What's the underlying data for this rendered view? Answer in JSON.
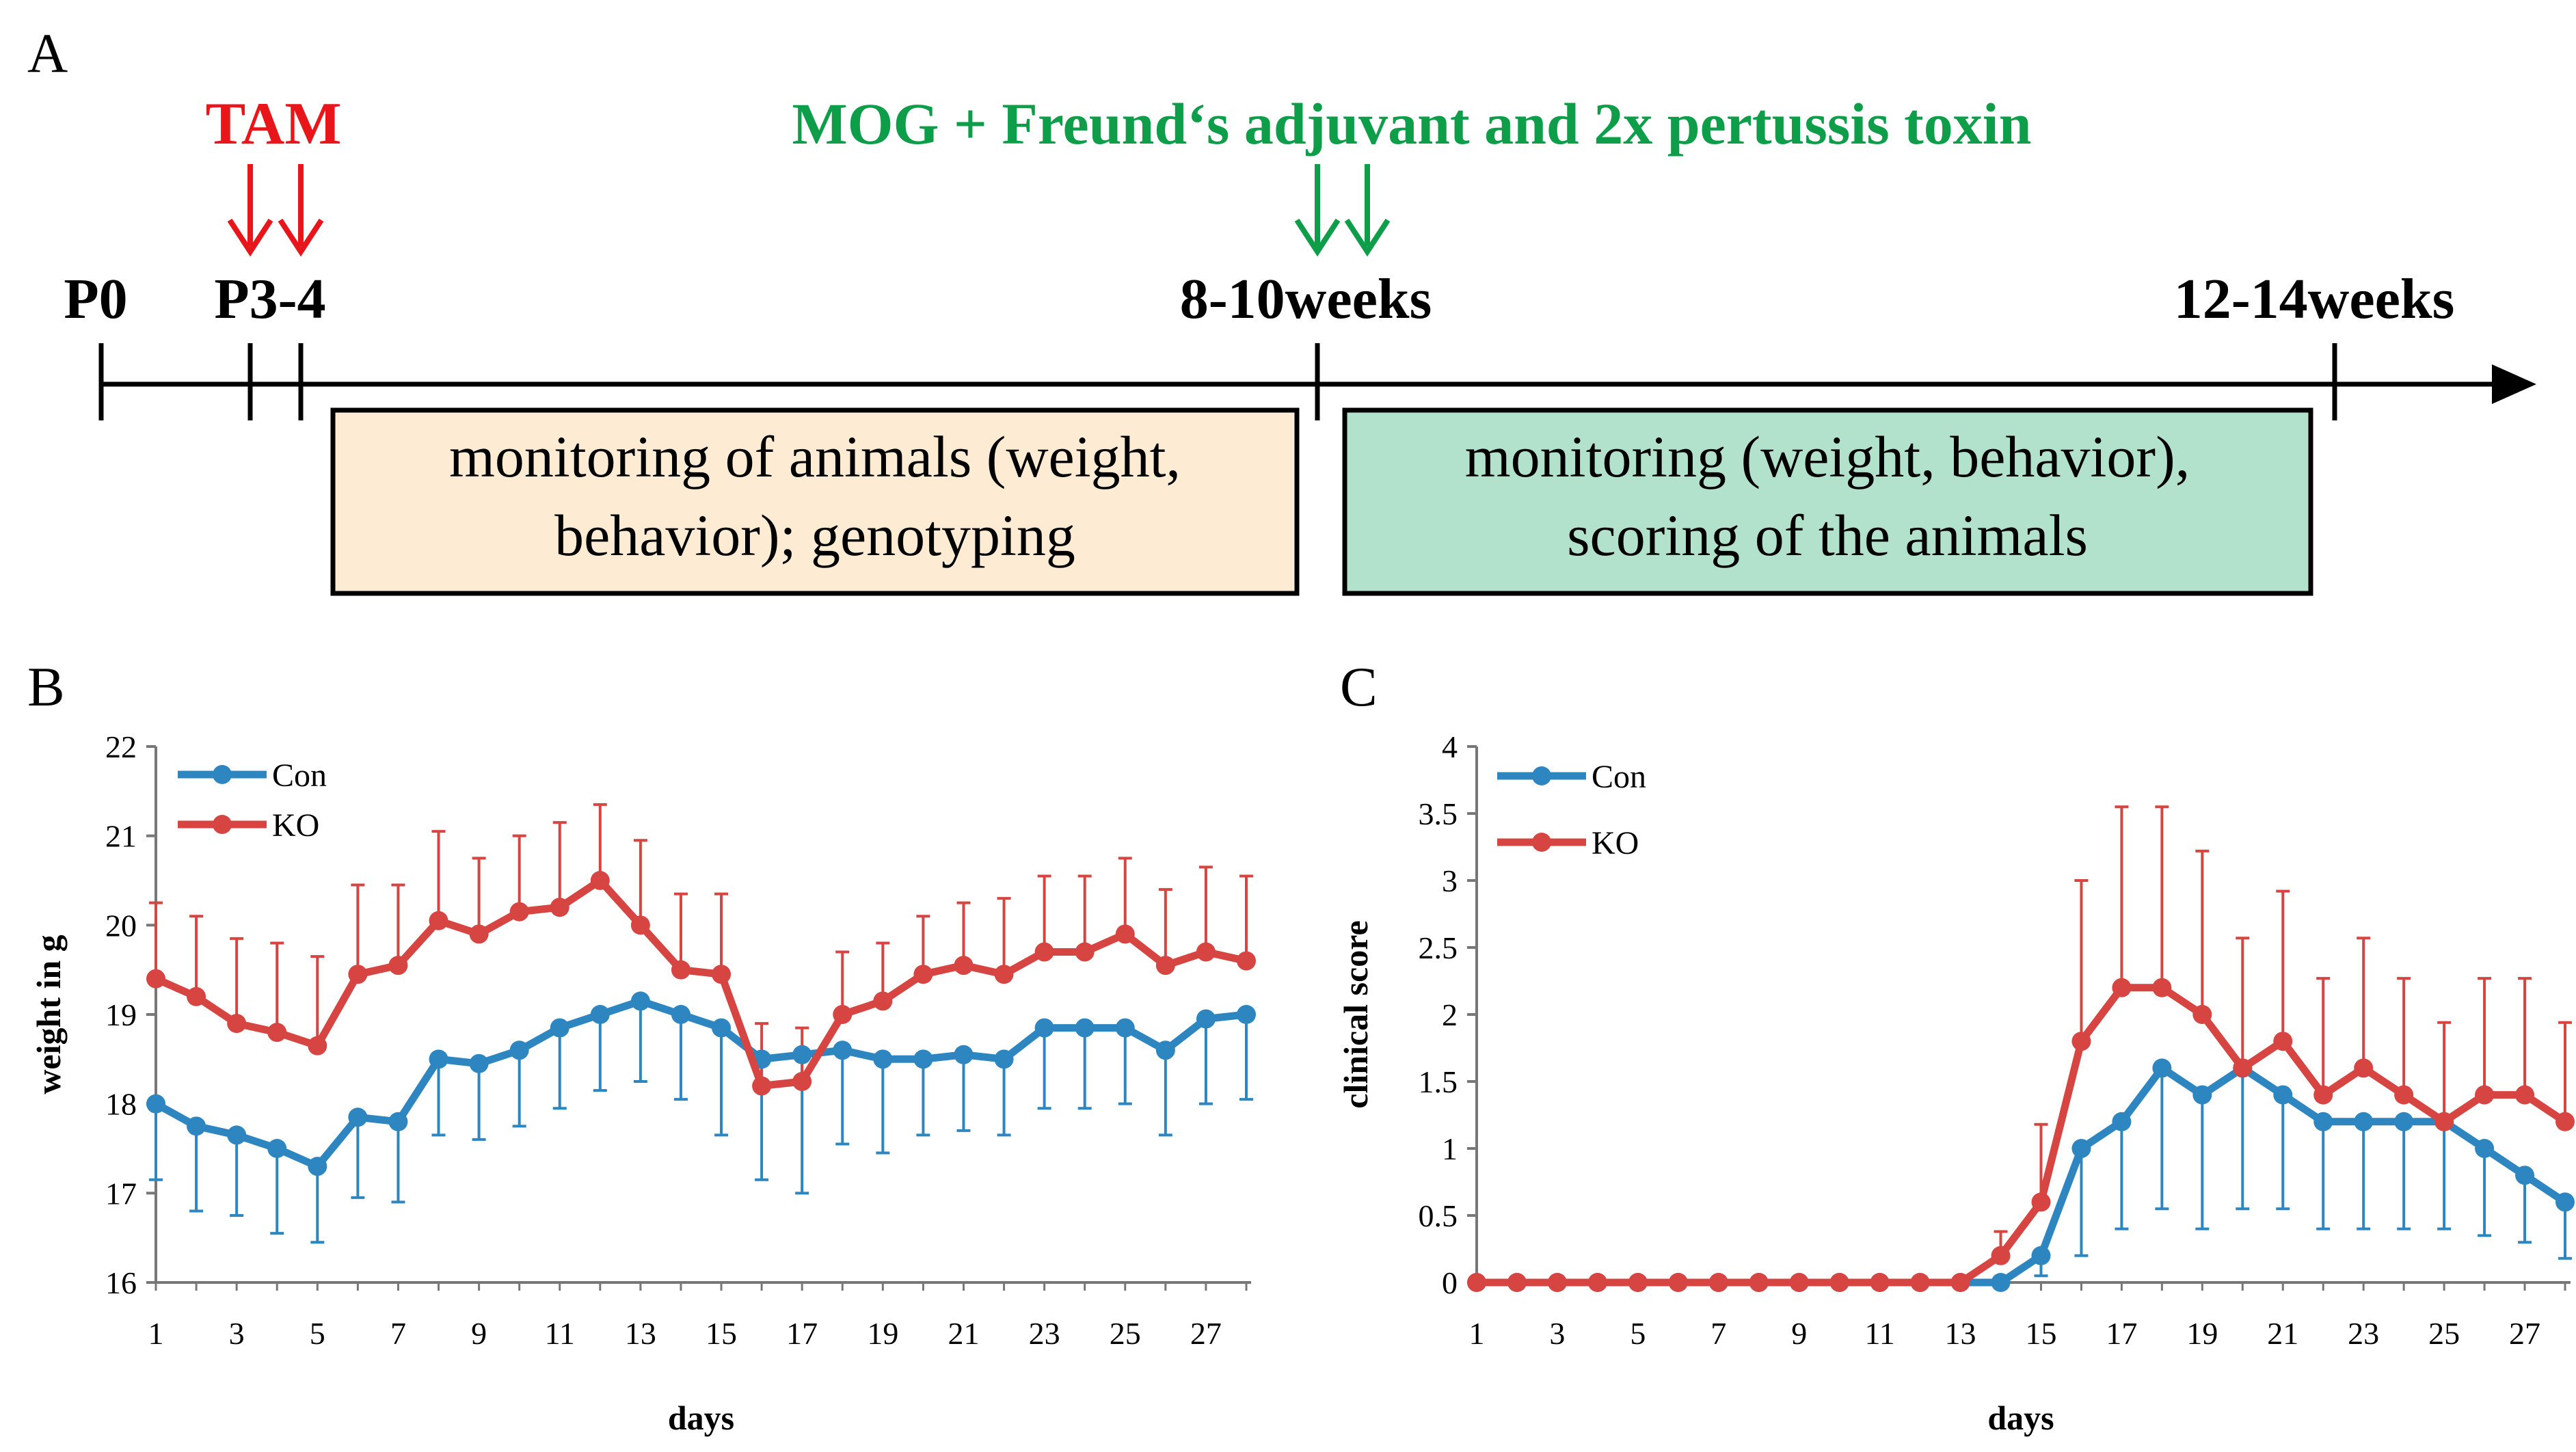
{
  "panel_labels": {
    "a": "A",
    "b": "B",
    "c": "C"
  },
  "timeline": {
    "tam_label": "TAM",
    "mog_label": "MOG + Freund‘s adjuvant and 2x pertussis toxin",
    "ticks": {
      "p0": "P0",
      "p34": "P3-4",
      "w810": "8-10weeks",
      "w1214": "12-14weeks"
    },
    "box1": {
      "line1": "monitoring of animals (weight,",
      "line2": "behavior); genotyping"
    },
    "box2": {
      "line1": "monitoring (weight, behavior),",
      "line2": "scoring of the animals"
    }
  },
  "colors": {
    "con": "#2E86C1",
    "ko": "#D64541",
    "tam": "#E8161B",
    "mog": "#0E9E4A",
    "box1_fill": "#FDEBD4",
    "box2_fill": "#B2E1CC"
  },
  "chart_data": [
    {
      "type": "line",
      "title": "",
      "xlabel": "days",
      "ylabel": "weight in g",
      "ylim": [
        16,
        22
      ],
      "yticks": [
        "16",
        "17",
        "18",
        "19",
        "20",
        "21",
        "22"
      ],
      "xticks": [
        "1",
        "3",
        "5",
        "7",
        "9",
        "11",
        "13",
        "15",
        "17",
        "19",
        "21",
        "23",
        "25",
        "27"
      ],
      "x": [
        1,
        2,
        3,
        4,
        5,
        6,
        7,
        8,
        9,
        10,
        11,
        12,
        13,
        14,
        15,
        16,
        17,
        18,
        19,
        20,
        21,
        22,
        23,
        24,
        25,
        26,
        27,
        28
      ],
      "legend": "top-left",
      "series": [
        {
          "name": "Con",
          "values": [
            18.0,
            17.75,
            17.65,
            17.5,
            17.3,
            17.85,
            17.8,
            18.5,
            18.45,
            18.6,
            18.85,
            19.0,
            19.15,
            19.0,
            18.85,
            18.5,
            18.55,
            18.6,
            18.5,
            18.5,
            18.55,
            18.5,
            18.85,
            18.85,
            18.85,
            18.6,
            18.95,
            19.0
          ],
          "error": [
            0.85,
            0.95,
            0.9,
            0.95,
            0.85,
            0.9,
            0.9,
            0.85,
            0.85,
            0.85,
            0.9,
            0.85,
            0.9,
            0.95,
            1.2,
            1.35,
            1.55,
            1.05,
            1.05,
            0.85,
            0.85,
            0.85,
            0.9,
            0.9,
            0.85,
            0.95,
            0.95,
            0.95
          ],
          "error_dir": "down"
        },
        {
          "name": "KO",
          "values": [
            19.4,
            19.2,
            18.9,
            18.8,
            18.65,
            19.45,
            19.55,
            20.05,
            19.9,
            20.15,
            20.2,
            20.5,
            20.0,
            19.5,
            19.45,
            18.2,
            18.25,
            19.0,
            19.15,
            19.45,
            19.55,
            19.45,
            19.7,
            19.7,
            19.9,
            19.55,
            19.7,
            19.6
          ],
          "error": [
            0.85,
            0.9,
            0.95,
            1.0,
            1.0,
            1.0,
            0.9,
            1.0,
            0.85,
            0.85,
            0.95,
            0.85,
            0.95,
            0.85,
            0.9,
            0.7,
            0.6,
            0.7,
            0.65,
            0.65,
            0.7,
            0.85,
            0.85,
            0.85,
            0.85,
            0.85,
            0.95,
            0.95
          ],
          "error_dir": "up"
        }
      ]
    },
    {
      "type": "line",
      "title": "",
      "xlabel": "days",
      "ylabel": "clinical score",
      "ylim": [
        0,
        4
      ],
      "yticks": [
        "0",
        "0.5",
        "1",
        "1.5",
        "2",
        "2.5",
        "3",
        "3.5",
        "4"
      ],
      "xticks": [
        "1",
        "3",
        "5",
        "7",
        "9",
        "11",
        "13",
        "15",
        "17",
        "19",
        "21",
        "23",
        "25",
        "27"
      ],
      "x": [
        1,
        2,
        3,
        4,
        5,
        6,
        7,
        8,
        9,
        10,
        11,
        12,
        13,
        14,
        15,
        16,
        17,
        18,
        19,
        20,
        21,
        22,
        23,
        24,
        25,
        26,
        27,
        28
      ],
      "legend": "top-left",
      "series": [
        {
          "name": "Con",
          "values": [
            0,
            0,
            0,
            0,
            0,
            0,
            0,
            0,
            0,
            0,
            0,
            0,
            0,
            0,
            0.2,
            1.0,
            1.2,
            1.6,
            1.4,
            1.6,
            1.4,
            1.2,
            1.2,
            1.2,
            1.2,
            1.0,
            0.8,
            0.6
          ],
          "error": [
            0,
            0,
            0,
            0,
            0,
            0,
            0,
            0,
            0,
            0,
            0,
            0,
            0,
            0,
            0.15,
            0.8,
            0.8,
            1.05,
            1.0,
            1.05,
            0.85,
            0.8,
            0.8,
            0.8,
            0.8,
            0.65,
            0.5,
            0.42
          ],
          "error_dir": "down"
        },
        {
          "name": "KO",
          "values": [
            0,
            0,
            0,
            0,
            0,
            0,
            0,
            0,
            0,
            0,
            0,
            0,
            0,
            0.2,
            0.6,
            1.8,
            2.2,
            2.2,
            2.0,
            1.6,
            1.8,
            1.4,
            1.6,
            1.4,
            1.2,
            1.4,
            1.4,
            1.2
          ],
          "error": [
            0,
            0,
            0,
            0,
            0,
            0,
            0,
            0,
            0,
            0,
            0,
            0,
            0,
            0.18,
            0.58,
            1.2,
            1.35,
            1.35,
            1.22,
            0.97,
            1.12,
            0.87,
            0.97,
            0.87,
            0.74,
            0.87,
            0.87,
            0.74
          ],
          "error_dir": "up"
        }
      ]
    }
  ]
}
